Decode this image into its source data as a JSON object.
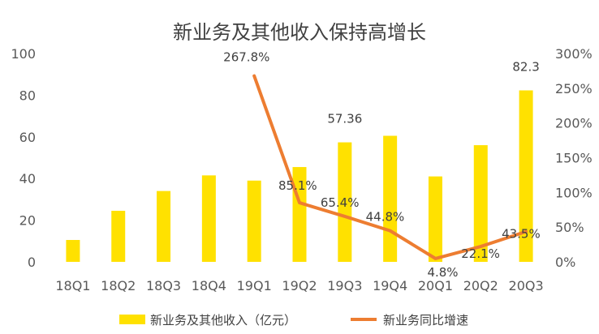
{
  "chart_data": {
    "type": "bar",
    "title": "新业务及其他收入保持高增长",
    "categories": [
      "18Q1",
      "18Q2",
      "18Q3",
      "18Q4",
      "19Q1",
      "19Q2",
      "19Q3",
      "19Q4",
      "20Q1",
      "20Q2",
      "20Q3"
    ],
    "series": [
      {
        "name": "新业务及其他收入（亿元）",
        "type": "bar",
        "axis": "left",
        "values": [
          10.5,
          24.5,
          34,
          41.5,
          39,
          45.5,
          57.36,
          60.5,
          41,
          56,
          82.3
        ]
      },
      {
        "name": "新业务同比增速",
        "type": "line",
        "axis": "right",
        "values": [
          null,
          null,
          null,
          null,
          267.8,
          85.1,
          65.4,
          44.8,
          4.8,
          22.1,
          43.5
        ]
      }
    ],
    "bar_labels": [
      {
        "index": 6,
        "text": "57.36"
      },
      {
        "index": 10,
        "text": "82.3"
      }
    ],
    "line_labels": [
      "267.8%",
      "85.1%",
      "65.4%",
      "44.8%",
      "4.8%",
      "22.1%",
      "43.5%"
    ],
    "y_left": {
      "min": 0,
      "max": 100,
      "ticks": [
        "0",
        "20",
        "40",
        "60",
        "80",
        "100"
      ]
    },
    "y_right": {
      "min": 0,
      "max": 300,
      "ticks": [
        "0%",
        "50%",
        "100%",
        "150%",
        "200%",
        "250%",
        "300%"
      ]
    },
    "colors": {
      "bar": "#FFE100",
      "line": "#ED7D31"
    },
    "grid": false,
    "legend_position": "bottom"
  }
}
